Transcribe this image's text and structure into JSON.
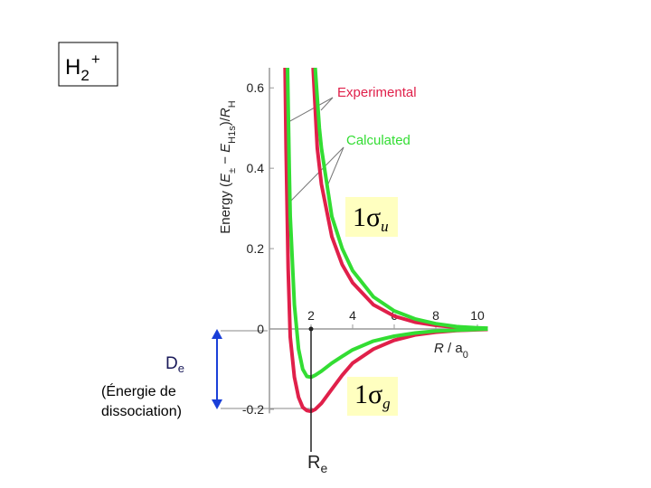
{
  "chart_data": {
    "type": "line",
    "title": {
      "base": "H",
      "sub": "2",
      "sup": "+"
    },
    "ylabel": [
      {
        "text": "Energy  (",
        "style": "normal"
      },
      {
        "text": "E",
        "style": "italic"
      },
      {
        "text": "±",
        "style": "sub"
      },
      {
        "text": " − ",
        "style": "normal"
      },
      {
        "text": "E",
        "style": "italic"
      },
      {
        "text": "H1s",
        "style": "sub"
      },
      {
        "text": ")/",
        "style": "normal"
      },
      {
        "text": "R",
        "style": "italic"
      },
      {
        "text": "H",
        "style": "sub"
      }
    ],
    "xlabel": [
      {
        "text": "R",
        "style": "italic"
      },
      {
        "text": " / a",
        "style": "normal"
      },
      {
        "text": "0",
        "style": "sub"
      }
    ],
    "xlim": [
      0,
      10.5
    ],
    "ylim": [
      -0.21,
      0.65
    ],
    "xticks": [
      2,
      4,
      6,
      8,
      10
    ],
    "yticks": [
      -0.2,
      0,
      0.2,
      0.4,
      0.6
    ],
    "grid": false,
    "series": [
      {
        "name": "Experimental",
        "color": "#e0204a",
        "lines": [
          {
            "x": [
              0.75,
              0.8,
              0.9,
              1.0,
              1.2,
              1.4,
              1.6,
              1.8,
              2.0,
              2.2,
              2.5,
              3,
              3.5,
              4,
              5,
              6,
              7,
              8,
              9,
              10,
              10.5
            ],
            "values": [
              0.65,
              0.45,
              0.15,
              -0.02,
              -0.12,
              -0.17,
              -0.195,
              -0.203,
              -0.205,
              -0.2,
              -0.185,
              -0.15,
              -0.115,
              -0.085,
              -0.05,
              -0.028,
              -0.015,
              -0.008,
              -0.004,
              -0.002,
              -0.001
            ]
          },
          {
            "x": [
              2.1,
              2.3,
              2.5,
              3,
              3.5,
              4,
              5,
              6,
              7,
              8,
              9,
              10,
              10.5
            ],
            "values": [
              0.65,
              0.45,
              0.36,
              0.23,
              0.16,
              0.115,
              0.06,
              0.032,
              0.017,
              0.009,
              0.004,
              0.002,
              0.001
            ]
          }
        ]
      },
      {
        "name": "Calculated",
        "color": "#33dd33",
        "lines": [
          {
            "x": [
              0.87,
              0.95,
              1.0,
              1.2,
              1.4,
              1.6,
              1.8,
              2.0,
              2.2,
              2.5,
              3,
              3.5,
              4,
              5,
              6,
              7,
              8,
              9,
              10,
              10.5
            ],
            "values": [
              0.65,
              0.4,
              0.28,
              0.06,
              -0.05,
              -0.1,
              -0.118,
              -0.12,
              -0.115,
              -0.105,
              -0.085,
              -0.068,
              -0.052,
              -0.03,
              -0.018,
              -0.01,
              -0.005,
              -0.003,
              -0.001,
              0
            ]
          },
          {
            "x": [
              2.2,
              2.4,
              2.5,
              3,
              3.5,
              4,
              5,
              6,
              7,
              8,
              9,
              10,
              10.5
            ],
            "values": [
              0.65,
              0.5,
              0.45,
              0.28,
              0.2,
              0.145,
              0.08,
              0.045,
              0.025,
              0.013,
              0.006,
              0.003,
              0.002
            ]
          }
        ]
      }
    ],
    "orbitals": [
      [
        "1σ",
        "u"
      ],
      [
        "1σ",
        "g"
      ]
    ],
    "annotations": {
      "De": [
        "D",
        "e"
      ],
      "de_note": [
        "(Énergie de",
        "dissociation)"
      ],
      "Re": [
        "R",
        "e"
      ]
    }
  }
}
